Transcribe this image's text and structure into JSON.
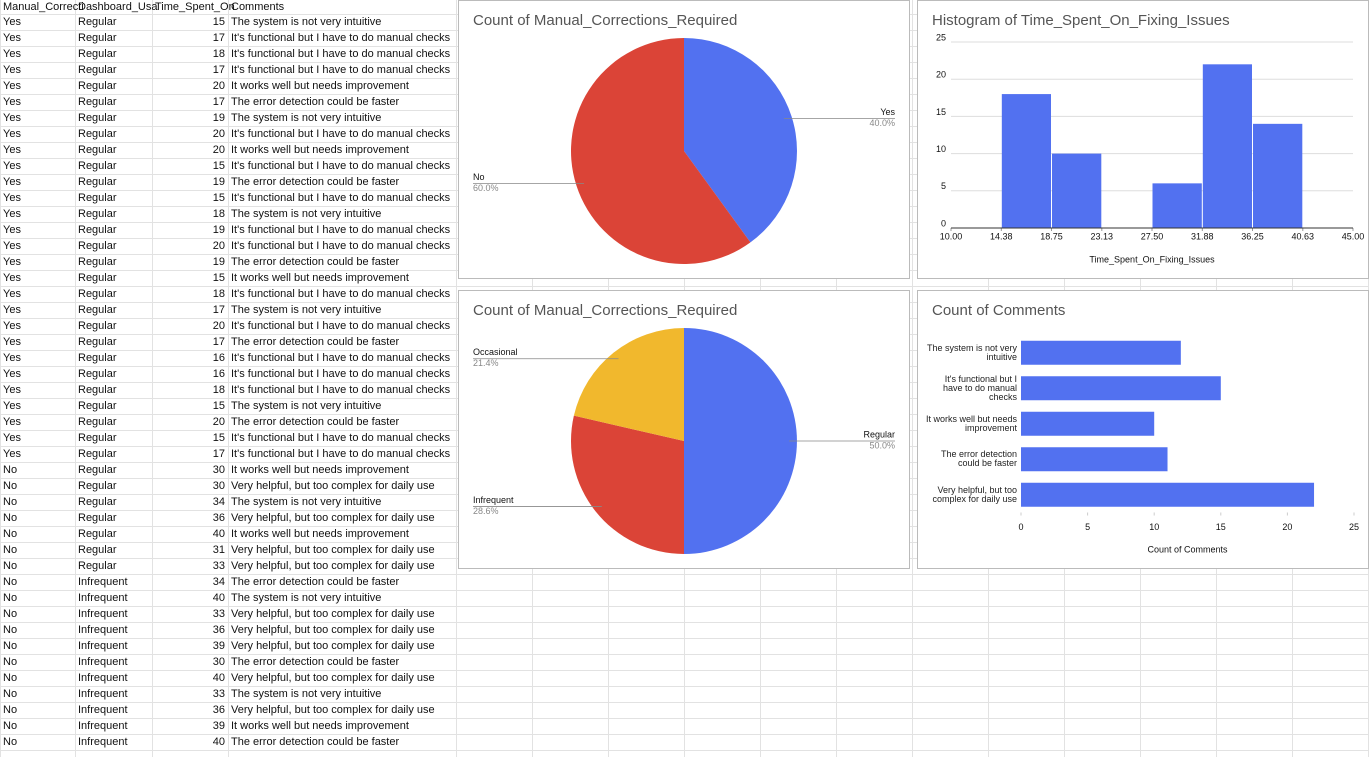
{
  "table": {
    "header": [
      "Manual_Correcti",
      "Dashboard_Usa",
      "Time_Spent_On",
      "Comments"
    ],
    "rows": [
      [
        "Yes",
        "Regular",
        15,
        "The system is not very intuitive"
      ],
      [
        "Yes",
        "Regular",
        17,
        "It's functional but I have to do manual checks"
      ],
      [
        "Yes",
        "Regular",
        18,
        "It's functional but I have to do manual checks"
      ],
      [
        "Yes",
        "Regular",
        17,
        "It's functional but I have to do manual checks"
      ],
      [
        "Yes",
        "Regular",
        20,
        "It works well but needs improvement"
      ],
      [
        "Yes",
        "Regular",
        17,
        "The error detection could be faster"
      ],
      [
        "Yes",
        "Regular",
        19,
        "The system is not very intuitive"
      ],
      [
        "Yes",
        "Regular",
        20,
        "It's functional but I have to do manual checks"
      ],
      [
        "Yes",
        "Regular",
        20,
        "It works well but needs improvement"
      ],
      [
        "Yes",
        "Regular",
        15,
        "It's functional but I have to do manual checks"
      ],
      [
        "Yes",
        "Regular",
        19,
        "The error detection could be faster"
      ],
      [
        "Yes",
        "Regular",
        15,
        "It's functional but I have to do manual checks"
      ],
      [
        "Yes",
        "Regular",
        18,
        "The system is not very intuitive"
      ],
      [
        "Yes",
        "Regular",
        19,
        "It's functional but I have to do manual checks"
      ],
      [
        "Yes",
        "Regular",
        20,
        "It's functional but I have to do manual checks"
      ],
      [
        "Yes",
        "Regular",
        19,
        "The error detection could be faster"
      ],
      [
        "Yes",
        "Regular",
        15,
        "It works well but needs improvement"
      ],
      [
        "Yes",
        "Regular",
        18,
        "It's functional but I have to do manual checks"
      ],
      [
        "Yes",
        "Regular",
        17,
        "The system is not very intuitive"
      ],
      [
        "Yes",
        "Regular",
        20,
        "It's functional but I have to do manual checks"
      ],
      [
        "Yes",
        "Regular",
        17,
        "The error detection could be faster"
      ],
      [
        "Yes",
        "Regular",
        16,
        "It's functional but I have to do manual checks"
      ],
      [
        "Yes",
        "Regular",
        16,
        "It's functional but I have to do manual checks"
      ],
      [
        "Yes",
        "Regular",
        18,
        "It's functional but I have to do manual checks"
      ],
      [
        "Yes",
        "Regular",
        15,
        "The system is not very intuitive"
      ],
      [
        "Yes",
        "Regular",
        20,
        "The error detection could be faster"
      ],
      [
        "Yes",
        "Regular",
        15,
        "It's functional but I have to do manual checks"
      ],
      [
        "Yes",
        "Regular",
        17,
        "It's functional but I have to do manual checks"
      ],
      [
        "No",
        "Regular",
        30,
        "It works well but needs improvement"
      ],
      [
        "No",
        "Regular",
        30,
        "Very helpful, but too complex for daily use"
      ],
      [
        "No",
        "Regular",
        34,
        "The system is not very intuitive"
      ],
      [
        "No",
        "Regular",
        36,
        "Very helpful, but too complex for daily use"
      ],
      [
        "No",
        "Regular",
        40,
        "It works well but needs improvement"
      ],
      [
        "No",
        "Regular",
        31,
        "Very helpful, but too complex for daily use"
      ],
      [
        "No",
        "Regular",
        33,
        "Very helpful, but too complex for daily use"
      ],
      [
        "No",
        "Infrequent",
        34,
        "The error detection could be faster"
      ],
      [
        "No",
        "Infrequent",
        40,
        "The system is not very intuitive"
      ],
      [
        "No",
        "Infrequent",
        33,
        "Very helpful, but too complex for daily use"
      ],
      [
        "No",
        "Infrequent",
        36,
        "Very helpful, but too complex for daily use"
      ],
      [
        "No",
        "Infrequent",
        39,
        "Very helpful, but too complex for daily use"
      ],
      [
        "No",
        "Infrequent",
        30,
        "The error detection could be faster"
      ],
      [
        "No",
        "Infrequent",
        40,
        "Very helpful, but too complex for daily use"
      ],
      [
        "No",
        "Infrequent",
        33,
        "The system is not very intuitive"
      ],
      [
        "No",
        "Infrequent",
        36,
        "Very helpful, but too complex for daily use"
      ],
      [
        "No",
        "Infrequent",
        39,
        "It works well but needs improvement"
      ],
      [
        "No",
        "Infrequent",
        40,
        "The error detection could be faster"
      ]
    ]
  },
  "chart_data": [
    {
      "type": "pie",
      "title": "Count of Manual_Corrections_Required",
      "categories": [
        "Yes",
        "No"
      ],
      "values": [
        40,
        60
      ],
      "value_labels": [
        "40.0%",
        "60.0%"
      ],
      "colors": [
        "#5271f0",
        "#db4437"
      ]
    },
    {
      "type": "histogram",
      "title": "Histogram of Time_Spent_On_Fixing_Issues",
      "xlabel": "Time_Spent_On_Fixing_Issues",
      "bins": [
        10,
        14.38,
        18.75,
        23.13,
        27.5,
        31.88,
        36.25,
        40.63,
        45
      ],
      "values": [
        0,
        18,
        10,
        0,
        6,
        22,
        14,
        0
      ],
      "color": "#5271f0",
      "xlim": [
        10,
        45
      ],
      "xticks": [
        {
          "value": 10,
          "label": "10.00"
        },
        14.38,
        18.75,
        23.13,
        {
          "value": 27.5,
          "label": "27.50"
        },
        31.88,
        36.25,
        40.63,
        {
          "value": 45,
          "label": "45.00"
        }
      ],
      "ylim": [
        0,
        25
      ],
      "yticks": [
        0,
        5,
        10,
        15,
        20,
        25
      ],
      "grid": true
    },
    {
      "type": "pie",
      "title": "Count of Manual_Corrections_Required",
      "categories": [
        "Regular",
        "Infrequent",
        "Occasional"
      ],
      "values": [
        50,
        28.6,
        21.4
      ],
      "value_labels": [
        "50.0%",
        "28.6%",
        "21.4%"
      ],
      "colors": [
        "#5271f0",
        "#db4437",
        "#f1b82d"
      ]
    },
    {
      "type": "hbar",
      "title": "Count of Comments",
      "xlabel": "Count of Comments",
      "categories": [
        "The system is not very intuitive",
        "It's functional but I have to do manual checks",
        "It works well but needs improvement",
        "The error detection could be faster",
        "Very helpful, but too complex for daily use"
      ],
      "values": [
        12,
        15,
        10,
        11,
        22
      ],
      "color": "#5271f0",
      "xlim": [
        0,
        25
      ],
      "xticks": [
        0,
        5,
        10,
        15,
        20,
        25
      ]
    }
  ]
}
